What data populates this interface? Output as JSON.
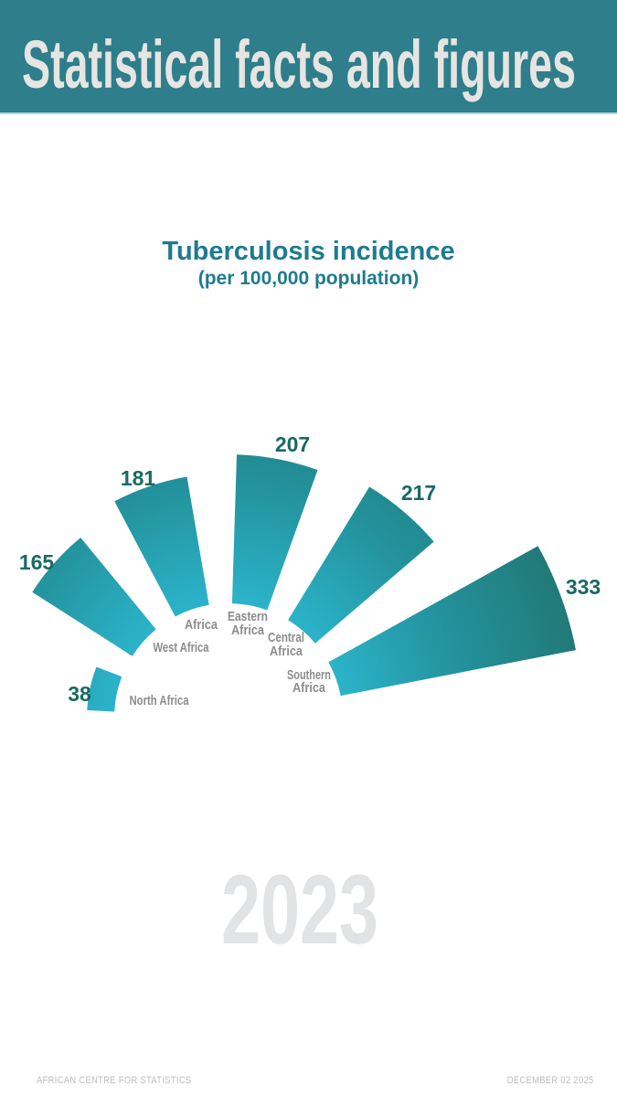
{
  "header": {
    "title": "Statistical facts and figures"
  },
  "chart": {
    "title": "Tuberculosis incidence",
    "subtitle": "(per 100,000 population)"
  },
  "chart_data": {
    "type": "bar",
    "variant": "radial_fan",
    "title": "Tuberculosis incidence",
    "subtitle": "(per 100,000 population)",
    "unit": "per 100,000 population",
    "year": "2023",
    "categories": [
      "North Africa",
      "West Africa",
      "Africa",
      "Eastern Africa",
      "Central Africa",
      "Southern Africa"
    ],
    "values": [
      38,
      165,
      181,
      207,
      217,
      333
    ],
    "label_lines": [
      [
        "North Africa"
      ],
      [
        "West Africa"
      ],
      [
        "Africa"
      ],
      [
        "Eastern",
        "Africa"
      ],
      [
        "Central",
        "Africa"
      ],
      [
        "Southern",
        "Africa"
      ]
    ],
    "legend": "none",
    "grid": false
  },
  "year": "2023",
  "footer": {
    "left": "AFRICAN CENTRE FOR STATISTICS",
    "right": "DECEMBER 02 2025"
  },
  "colors": {
    "header_bg": "#2e7e8b",
    "header_text": "#e6e5e2",
    "title_teal": "#1e7b8e",
    "wedge_light": "#2db5cb",
    "wedge_mid": "#23919b",
    "wedge_dark": "#20716a",
    "value_text": "#186a62",
    "label_gray": "#8b8c8e",
    "year_gray": "#e2e3e4",
    "footer_gray": "#bcbdbe"
  }
}
